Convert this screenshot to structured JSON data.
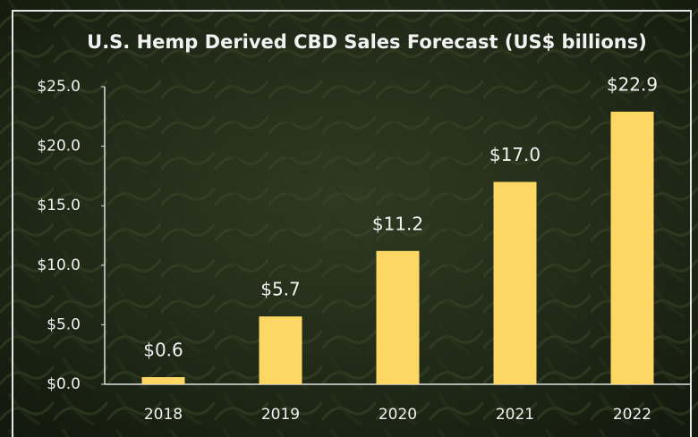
{
  "chart_data": {
    "type": "bar",
    "title": "U.S. Hemp Derived CBD Sales Forecast (US$ billions)",
    "categories": [
      "2018",
      "2019",
      "2020",
      "2021",
      "2022"
    ],
    "values": [
      0.6,
      5.7,
      11.2,
      17.0,
      22.9
    ],
    "value_labels": [
      "$0.6",
      "$5.7",
      "$11.2",
      "$17.0",
      "$22.9"
    ],
    "color": "#fdd764",
    "ylim": [
      0,
      25
    ],
    "yticks": [
      {
        "value": 0,
        "label": "$0.0"
      },
      {
        "value": 5,
        "label": "$5.0"
      },
      {
        "value": 10,
        "label": "$10.0"
      },
      {
        "value": 15,
        "label": "$15.0"
      },
      {
        "value": 20,
        "label": "$20.0"
      },
      {
        "value": 25,
        "label": "$25.0"
      }
    ],
    "grid": false
  }
}
